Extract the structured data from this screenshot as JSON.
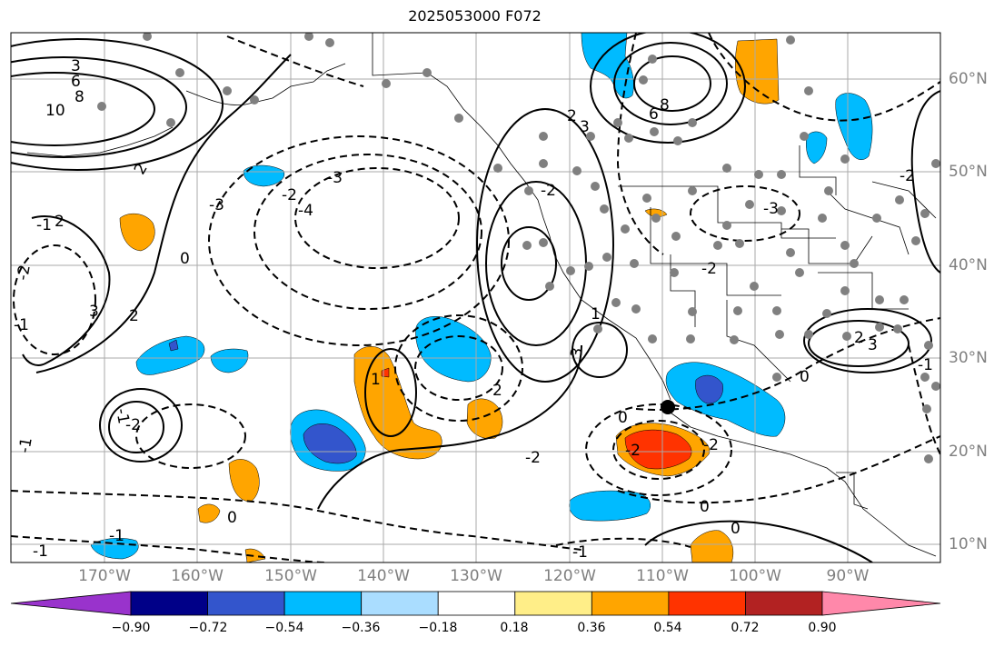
{
  "title": "2025053000 F072",
  "map": {
    "region": "Northeast Pacific / North America / Mexico",
    "longitude_labels": [
      "170°W",
      "160°W",
      "150°W",
      "140°W",
      "130°W",
      "120°W",
      "110°W",
      "100°W",
      "90°W"
    ],
    "latitude_labels": [
      "60°N",
      "50°N",
      "40°N",
      "30°N",
      "20°N",
      "10°N"
    ],
    "contour_labels": [
      "3",
      "6",
      "8",
      "10",
      "2",
      "2",
      "-1",
      "-2",
      "-1",
      "-1",
      "3",
      "2",
      "-1",
      "-2",
      "0",
      "-2",
      "-3",
      "-4",
      "1",
      "2",
      "3",
      "1",
      "2",
      "-2",
      "-3",
      "0",
      "2",
      "3",
      "8",
      "6",
      "-1",
      "-2",
      "-3",
      "-1",
      "-2",
      "3",
      "0",
      "-2",
      "0",
      "-2",
      "0",
      "-1",
      "0",
      "-1",
      "-2"
    ],
    "map_features": [
      "filled anomaly shading",
      "solid positive contours",
      "dashed negative contours",
      "grey station dots",
      "coastlines",
      "state and country borders",
      "grid lines"
    ]
  },
  "colorbar": {
    "colors": [
      "#9933cc",
      "#000088",
      "#3355cc",
      "#00bbff",
      "#aaddff",
      "#ffffff",
      "#ffee88",
      "#ffa500",
      "#ff3300",
      "#b22222",
      "#ff88aa"
    ],
    "tick_labels": [
      "−0.90",
      "−0.72",
      "−0.54",
      "−0.36",
      "−0.18",
      "0.18",
      "0.36",
      "0.54",
      "0.72",
      "0.90"
    ]
  }
}
